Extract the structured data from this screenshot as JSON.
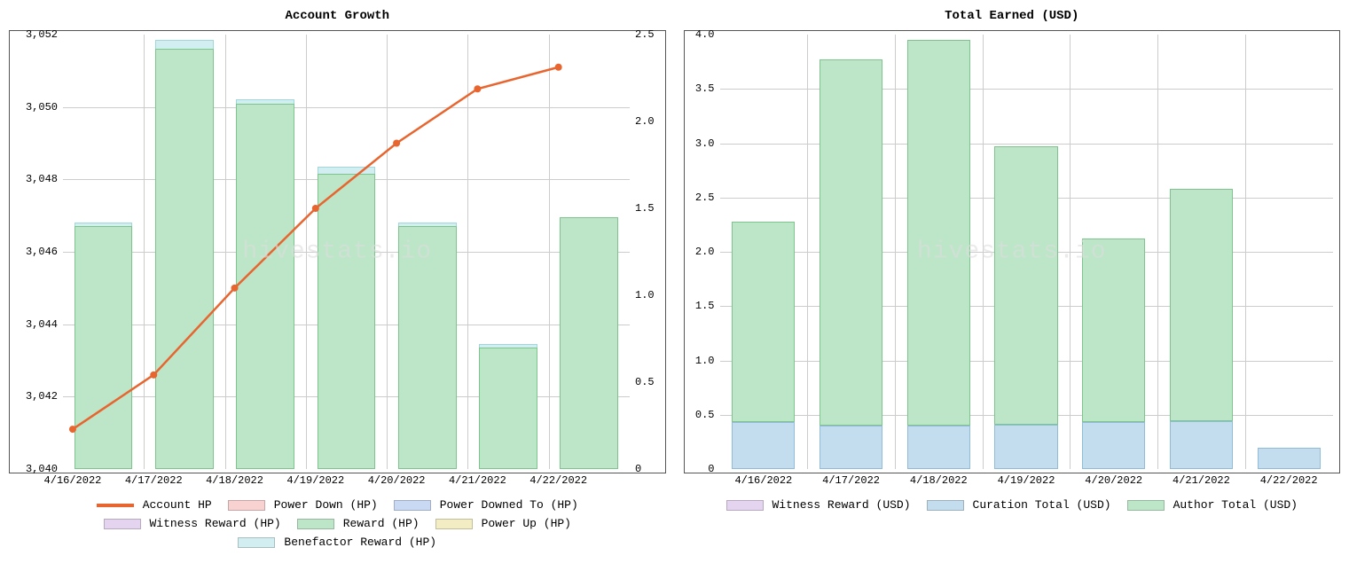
{
  "watermark_text": "hivestats.io",
  "watermark_color": "#dddddd",
  "font_family": "Courier New, monospace",
  "axis_font_size": 12,
  "title_font_size": 14,
  "grid_color": "#cccccc",
  "border_color": "#555555",
  "background_color": "#ffffff",
  "chart1": {
    "title": "Account Growth",
    "type": "bar+line",
    "categories": [
      "4/16/2022",
      "4/17/2022",
      "4/18/2022",
      "4/19/2022",
      "4/20/2022",
      "4/21/2022",
      "4/22/2022"
    ],
    "y_left": {
      "min": 3040,
      "max": 3052,
      "step": 2,
      "labels": [
        "3,040",
        "3,042",
        "3,044",
        "3,046",
        "3,048",
        "3,050",
        "3,052"
      ]
    },
    "y_right": {
      "min": 0,
      "max": 2.5,
      "step": 0.5,
      "labels": [
        "0",
        "0.5",
        "1.0",
        "1.5",
        "2.0",
        "2.5"
      ]
    },
    "bars_reward": {
      "values": [
        1.4,
        2.42,
        2.1,
        1.7,
        1.4,
        0.7,
        1.45
      ],
      "color": "#bce6c7",
      "border": "#7cc68e"
    },
    "bars_benefactor": {
      "values": [
        1.42,
        2.47,
        2.13,
        1.74,
        1.42,
        0.72,
        1.45
      ],
      "color": "#d2eef0",
      "border": "#9fd7da"
    },
    "bar_width": 0.72,
    "line_account_hp": {
      "values": [
        3041.1,
        3042.6,
        3045.0,
        3047.2,
        3049.0,
        3050.5,
        3051.1
      ],
      "color": "#e8652f",
      "marker_size": 4,
      "line_width": 2.5
    },
    "legend": [
      {
        "label": "Account HP",
        "color": "#e8652f",
        "type": "line"
      },
      {
        "label": "Power Down (HP)",
        "color": "#f8d1d1",
        "type": "bar"
      },
      {
        "label": "Power Downed To (HP)",
        "color": "#c9d9f4",
        "type": "bar"
      },
      {
        "label": "Witness Reward (HP)",
        "color": "#e5d4ef",
        "type": "bar"
      },
      {
        "label": "Reward (HP)",
        "color": "#bce6c7",
        "type": "bar"
      },
      {
        "label": "Power Up (HP)",
        "color": "#f3edc3",
        "type": "bar"
      },
      {
        "label": "Benefactor Reward (HP)",
        "color": "#d2eef0",
        "type": "bar"
      }
    ]
  },
  "chart2": {
    "title": "Total Earned (USD)",
    "type": "stacked-bar",
    "categories": [
      "4/16/2022",
      "4/17/2022",
      "4/18/2022",
      "4/19/2022",
      "4/20/2022",
      "4/21/2022",
      "4/22/2022"
    ],
    "y": {
      "min": 0,
      "max": 4.0,
      "step": 0.5,
      "labels": [
        "0",
        "0.5",
        "1.0",
        "1.5",
        "2.0",
        "2.5",
        "3.0",
        "3.5",
        "4.0"
      ]
    },
    "series_curation": {
      "values": [
        0.43,
        0.4,
        0.4,
        0.41,
        0.43,
        0.44,
        0.2
      ],
      "color": "#c3ddee",
      "border": "#8fbcd9"
    },
    "series_author": {
      "values": [
        1.85,
        3.37,
        3.55,
        2.56,
        1.69,
        2.14,
        0.0
      ],
      "color": "#bce6c7",
      "border": "#7cc68e"
    },
    "bar_width": 0.72,
    "legend": [
      {
        "label": "Witness Reward (USD)",
        "color": "#e5d4ef",
        "type": "bar"
      },
      {
        "label": "Curation Total (USD)",
        "color": "#c3ddee",
        "type": "bar"
      },
      {
        "label": "Author Total (USD)",
        "color": "#bce6c7",
        "type": "bar"
      }
    ]
  }
}
